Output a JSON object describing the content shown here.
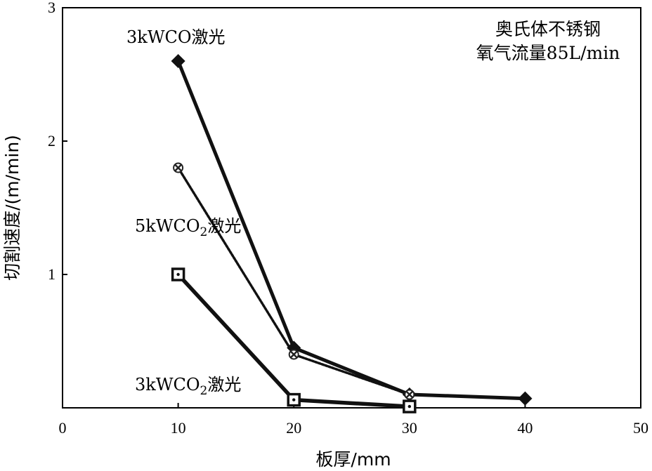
{
  "chart_data": {
    "type": "line",
    "xlabel": "板厚/mm",
    "ylabel": "切割速度/(m/min)",
    "xlim": [
      0,
      50
    ],
    "ylim": [
      0,
      3
    ],
    "x_ticks": [
      0,
      10,
      20,
      30,
      40,
      50
    ],
    "y_ticks": [
      1,
      2,
      3
    ],
    "y_tick_labels": [
      "1",
      "2",
      "3"
    ],
    "grid": false,
    "annotation": [
      "奥氏体不锈钢",
      "氧气流量85L/min"
    ],
    "series": [
      {
        "name": "3kWCO激光",
        "label_parts": {
          "main": "3kWCO",
          "sub": "",
          "suffix": "激光"
        },
        "marker": "diamond",
        "x": [
          10,
          20,
          30,
          40
        ],
        "y": [
          2.6,
          0.45,
          0.1,
          0.07
        ]
      },
      {
        "name": "5kWCO2激光",
        "label_parts": {
          "main": "5kWCO",
          "sub": "2",
          "suffix": "激光"
        },
        "marker": "cross",
        "x": [
          10,
          20,
          30
        ],
        "y": [
          1.8,
          0.4,
          0.1
        ]
      },
      {
        "name": "3kWCO2激光",
        "label_parts": {
          "main": "3kWCO",
          "sub": "2",
          "suffix": "激光"
        },
        "marker": "square",
        "x": [
          10,
          20,
          30
        ],
        "y": [
          1.0,
          0.06,
          0.01
        ]
      }
    ]
  }
}
